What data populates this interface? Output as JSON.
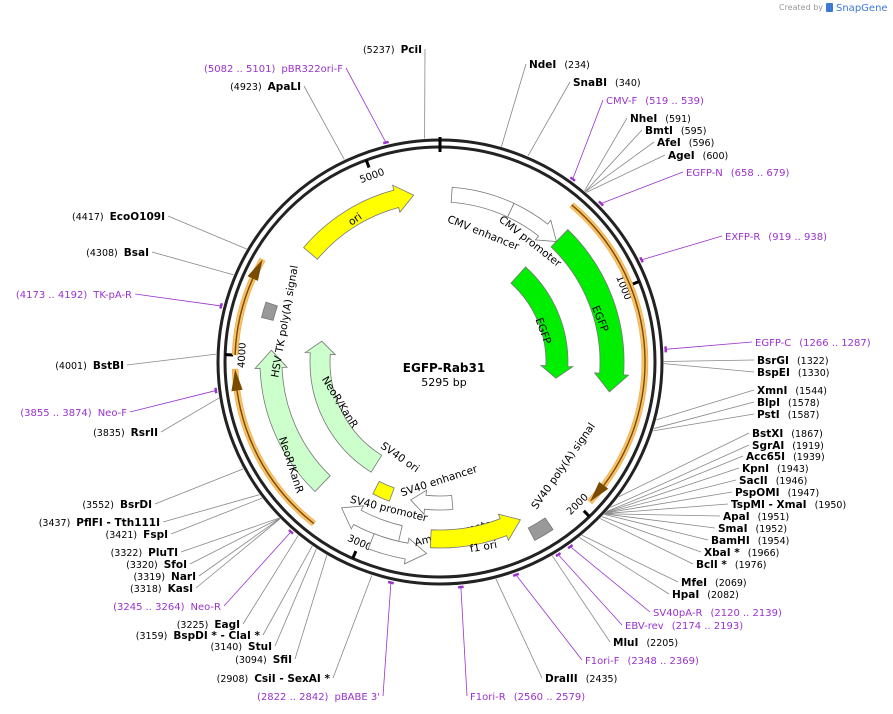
{
  "header": {
    "created_by": "Created by",
    "brand": "SnapGene"
  },
  "map": {
    "name": "EGFP-Rab31",
    "length": "5295 bp",
    "ticks": [
      1000,
      2000,
      3000,
      4000,
      5000
    ]
  },
  "sites": [
    {
      "name": "PciI",
      "pos": "(5237)"
    },
    {
      "name": "NdeI",
      "pos": "(234)"
    },
    {
      "name": "SnaBI",
      "pos": "(340)"
    },
    {
      "name": "NheI",
      "pos": "(591)"
    },
    {
      "name": "BmtI",
      "pos": "(595)"
    },
    {
      "name": "AfeI",
      "pos": "(596)"
    },
    {
      "name": "AgeI",
      "pos": "(600)"
    },
    {
      "name": "BsrGI",
      "pos": "(1322)"
    },
    {
      "name": "BspEI",
      "pos": "(1330)"
    },
    {
      "name": "XmnI",
      "pos": "(1544)"
    },
    {
      "name": "BlpI",
      "pos": "(1578)"
    },
    {
      "name": "PstI",
      "pos": "(1587)"
    },
    {
      "name": "BstXI",
      "pos": "(1867)"
    },
    {
      "name": "SgrAI",
      "pos": "(1919)"
    },
    {
      "name": "Acc65I",
      "pos": "(1939)"
    },
    {
      "name": "KpnI",
      "pos": "(1943)"
    },
    {
      "name": "SacII",
      "pos": "(1946)"
    },
    {
      "name": "PspOMI",
      "pos": "(1947)"
    },
    {
      "name": "TspMI  - XmaI",
      "pos": "(1950)"
    },
    {
      "name": "ApaI",
      "pos": "(1951)"
    },
    {
      "name": "SmaI",
      "pos": "(1952)"
    },
    {
      "name": "BamHI",
      "pos": "(1954)"
    },
    {
      "name": "XbaI *",
      "pos": "(1966)"
    },
    {
      "name": "BclI *",
      "pos": "(1976)"
    },
    {
      "name": "MfeI",
      "pos": "(2069)"
    },
    {
      "name": "HpaI",
      "pos": "(2082)"
    },
    {
      "name": "MluI",
      "pos": "(2205)"
    },
    {
      "name": "DraIII",
      "pos": "(2435)"
    },
    {
      "name": "CsiI  - SexAI *",
      "pos": "(2908)"
    },
    {
      "name": "SfiI",
      "pos": "(3094)"
    },
    {
      "name": "StuI",
      "pos": "(3140)"
    },
    {
      "name": "BspDI *  - ClaI *",
      "pos": "(3159)"
    },
    {
      "name": "EagI",
      "pos": "(3225)"
    },
    {
      "name": "KasI",
      "pos": "(3318)"
    },
    {
      "name": "NarI",
      "pos": "(3319)"
    },
    {
      "name": "SfoI",
      "pos": "(3320)"
    },
    {
      "name": "PluTI",
      "pos": "(3322)"
    },
    {
      "name": "FspI",
      "pos": "(3421)"
    },
    {
      "name": "PflFI  - Tth111I",
      "pos": "(3437)"
    },
    {
      "name": "BsrDI",
      "pos": "(3552)"
    },
    {
      "name": "RsrII",
      "pos": "(3835)"
    },
    {
      "name": "BstBI",
      "pos": "(4001)"
    },
    {
      "name": "BsaI",
      "pos": "(4308)"
    },
    {
      "name": "EcoO109I",
      "pos": "(4417)"
    },
    {
      "name": "ApaLI",
      "pos": "(4923)"
    }
  ],
  "primers": [
    {
      "name": "pBR322ori-F",
      "range": "(5082 .. 5101)"
    },
    {
      "name": "CMV-F",
      "range": "(519 .. 539)"
    },
    {
      "name": "EGFP-N",
      "range": "(658 .. 679)"
    },
    {
      "name": "EXFP-R",
      "range": "(919 .. 938)"
    },
    {
      "name": "EGFP-C",
      "range": "(1266 .. 1287)"
    },
    {
      "name": "SV40pA-R",
      "range": "(2120 .. 2139)"
    },
    {
      "name": "EBV-rev",
      "range": "(2174 .. 2193)"
    },
    {
      "name": "F1ori-F",
      "range": "(2348 .. 2369)"
    },
    {
      "name": "F1ori-R",
      "range": "(2560 .. 2579)"
    },
    {
      "name": "pBABE 3'",
      "range": "(2822 .. 2842)"
    },
    {
      "name": "Neo-R",
      "range": "(3245 .. 3264)"
    },
    {
      "name": "Neo-F",
      "range": "(3855 .. 3874)"
    },
    {
      "name": "TK-pA-R",
      "range": "(4173 .. 4192)"
    }
  ],
  "features": [
    {
      "name": "ori"
    },
    {
      "name": "CMV enhancer"
    },
    {
      "name": "CMV promoter"
    },
    {
      "name": "EGFP"
    },
    {
      "name": "EGFP"
    },
    {
      "name": "NeoR/KanR"
    },
    {
      "name": "NeoR/KanR"
    },
    {
      "name": "HSV TK poly(A) signal"
    },
    {
      "name": "SV40 ori"
    },
    {
      "name": "SV40 enhancer"
    },
    {
      "name": "SV40 promoter"
    },
    {
      "name": "AmpR promoter"
    },
    {
      "name": "f1 ori"
    },
    {
      "name": "SV40 poly(A) signal"
    }
  ]
}
